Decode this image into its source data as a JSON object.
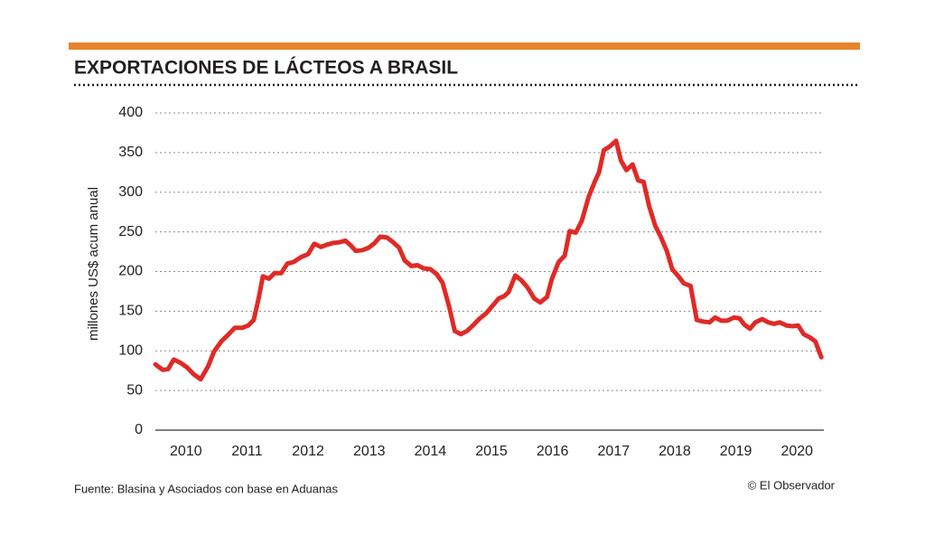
{
  "chart_data": {
    "type": "line",
    "title": "EXPORTACIONES DE LÁCTEOS A BRASIL",
    "y_label": "millones US$ acum anual",
    "source": "Fuente: Blasina y Asociados con base en Aduanas",
    "credit": "© El Observador",
    "x": [
      2010.0,
      2010.12,
      2010.21,
      2010.3,
      2010.41,
      2010.52,
      2010.62,
      2010.74,
      2010.86,
      2010.96,
      2011.08,
      2011.2,
      2011.3,
      2011.42,
      2011.52,
      2011.61,
      2011.69,
      2011.76,
      2011.86,
      2011.95,
      2012.06,
      2012.16,
      2012.26,
      2012.38,
      2012.5,
      2012.6,
      2012.71,
      2012.81,
      2012.91,
      2013.02,
      2013.11,
      2013.21,
      2013.28,
      2013.39,
      2013.49,
      2013.59,
      2013.68,
      2013.79,
      2013.89,
      2013.99,
      2014.08,
      2014.19,
      2014.29,
      2014.39,
      2014.5,
      2014.6,
      2014.7,
      2014.81,
      2014.9,
      2015.0,
      2015.1,
      2015.21,
      2015.31,
      2015.41,
      2015.52,
      2015.62,
      2015.71,
      2015.78,
      2015.89,
      2015.99,
      2016.09,
      2016.2,
      2016.3,
      2016.41,
      2016.49,
      2016.6,
      2016.7,
      2016.78,
      2016.88,
      2016.98,
      2017.09,
      2017.19,
      2017.26,
      2017.34,
      2017.44,
      2017.54,
      2017.62,
      2017.71,
      2017.81,
      2017.9,
      2017.99,
      2018.08,
      2018.18,
      2018.27,
      2018.37,
      2018.46,
      2018.57,
      2018.65,
      2018.76,
      2018.86,
      2018.96,
      2019.07,
      2019.16,
      2019.26,
      2019.36,
      2019.47,
      2019.56,
      2019.64,
      2019.73,
      2019.82,
      2019.93,
      2020.03,
      2020.13,
      2020.22,
      2020.33,
      2020.43,
      2020.52,
      2020.61,
      2020.71,
      2020.8,
      2020.9
    ],
    "series": [
      {
        "color": "#e02a26",
        "values": [
          83,
          76,
          77,
          89,
          85,
          79,
          71,
          64,
          80,
          99,
          112,
          121,
          129,
          129,
          132,
          139,
          166,
          194,
          191,
          198,
          198,
          210,
          212,
          218,
          222,
          235,
          231,
          234,
          236,
          237,
          239,
          232,
          226,
          227,
          230,
          236,
          244,
          243,
          237,
          230,
          214,
          207,
          208,
          204,
          203,
          197,
          186,
          155,
          125,
          121,
          125,
          133,
          141,
          147,
          157,
          166,
          169,
          174,
          195,
          189,
          180,
          166,
          161,
          168,
          191,
          212,
          220,
          251,
          249,
          264,
          294,
          313,
          325,
          353,
          358,
          365,
          340,
          328,
          335,
          315,
          313,
          283,
          258,
          244,
          226,
          203,
          193,
          185,
          182,
          139,
          137,
          136,
          142,
          138,
          138,
          142,
          141,
          133,
          128,
          136,
          140,
          136,
          134,
          136,
          132,
          131,
          132,
          121,
          117,
          112,
          92
        ]
      }
    ],
    "xlim": [
      2010,
      2020.94
    ],
    "xticks": [
      {
        "value": 2010.5,
        "label": "2010"
      },
      {
        "value": 2011.5,
        "label": "2011"
      },
      {
        "value": 2012.5,
        "label": "2012"
      },
      {
        "value": 2013.5,
        "label": "2013"
      },
      {
        "value": 2014.5,
        "label": "2014"
      },
      {
        "value": 2015.5,
        "label": "2015"
      },
      {
        "value": 2016.5,
        "label": "2016"
      },
      {
        "value": 2017.5,
        "label": "2017"
      },
      {
        "value": 2018.5,
        "label": "2018"
      },
      {
        "value": 2019.5,
        "label": "2019"
      },
      {
        "value": 2020.5,
        "label": "2020"
      }
    ],
    "ylim": [
      0,
      400
    ],
    "yticks": [
      0,
      50,
      100,
      150,
      200,
      250,
      300,
      350,
      400
    ],
    "grid": true
  }
}
